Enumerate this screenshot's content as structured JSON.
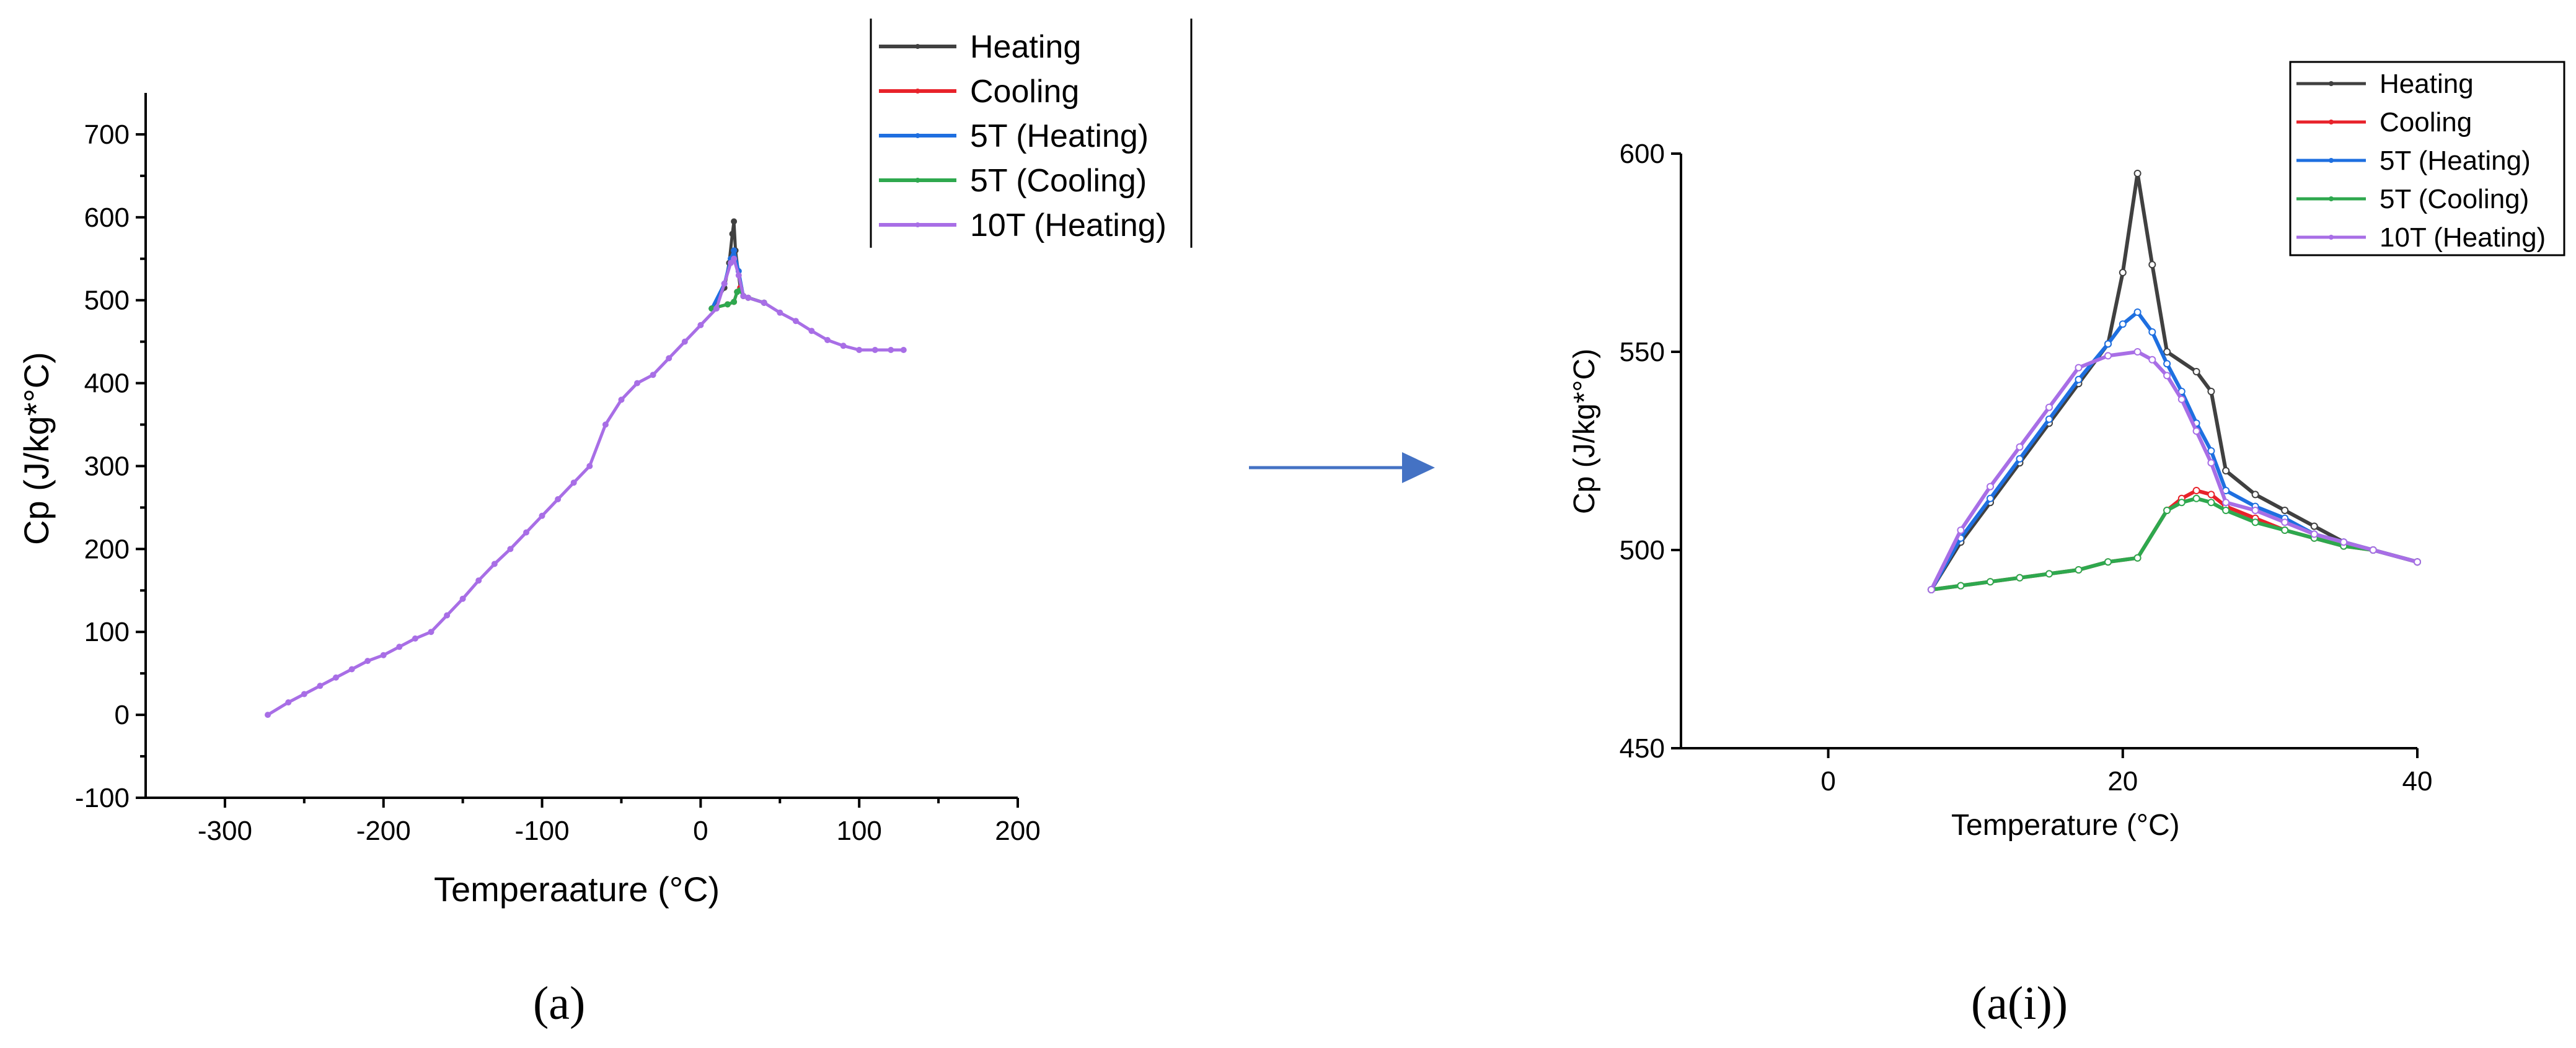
{
  "captions": {
    "left": "(a)",
    "right": "(a(i))"
  },
  "colors": {
    "heating": "#404040",
    "cooling": "#e8222a",
    "heating_5t": "#1e6fe0",
    "cooling_5t": "#2ea84e",
    "heating_10t": "#a86ee6",
    "arrow": "#4472c4"
  },
  "chart_data": [
    {
      "type": "line",
      "title": "",
      "xlabel": "Temperaature (°C)",
      "ylabel": "Cp (J/kg*°C)",
      "xlim": [
        -350,
        200
      ],
      "ylim": [
        -100,
        750
      ],
      "xticks": [
        -300,
        -200,
        -100,
        0,
        100,
        200
      ],
      "yticks": [
        -100,
        0,
        100,
        200,
        300,
        400,
        500,
        600,
        700
      ],
      "xtick_labels": [
        "-300",
        "-200",
        "-100",
        "0",
        "100",
        "200"
      ],
      "ytick_labels": [
        "-100",
        "0",
        "100",
        "200",
        "300",
        "400",
        "500",
        "600",
        "700"
      ],
      "legend_position": "top-right",
      "grid": false,
      "series": [
        {
          "name": "Heating",
          "color": "#404040",
          "points": [
            [
              7,
              490
            ],
            [
              15,
              515
            ],
            [
              18,
              545
            ],
            [
              20,
              580
            ],
            [
              21,
              595
            ],
            [
              22,
              560
            ],
            [
              25,
              515
            ],
            [
              27,
              505
            ],
            [
              30,
              503
            ],
            [
              40,
              497
            ]
          ]
        },
        {
          "name": "Cooling",
          "color": "#e8222a",
          "points": [
            [
              7,
              490
            ],
            [
              17,
              495
            ],
            [
              21,
              498
            ],
            [
              23,
              510
            ],
            [
              25,
              515
            ],
            [
              27,
              505
            ],
            [
              40,
              497
            ]
          ]
        },
        {
          "name": "5T (Heating)",
          "color": "#1e6fe0",
          "points": [
            [
              7,
              490
            ],
            [
              15,
              520
            ],
            [
              19,
              550
            ],
            [
              21,
              560
            ],
            [
              24,
              535
            ],
            [
              27,
              505
            ],
            [
              40,
              497
            ]
          ]
        },
        {
          "name": "5T (Cooling)",
          "color": "#2ea84e",
          "points": [
            [
              7,
              490
            ],
            [
              17,
              495
            ],
            [
              21,
              498
            ],
            [
              23,
              510
            ],
            [
              25,
              512
            ],
            [
              27,
              505
            ],
            [
              40,
              497
            ]
          ]
        },
        {
          "name": "10T (Heating)",
          "color": "#a86ee6",
          "points": [
            [
              -273,
              0
            ],
            [
              -260,
              15
            ],
            [
              -250,
              25
            ],
            [
              -240,
              35
            ],
            [
              -230,
              45
            ],
            [
              -220,
              55
            ],
            [
              -210,
              65
            ],
            [
              -200,
              72
            ],
            [
              -190,
              82
            ],
            [
              -180,
              92
            ],
            [
              -170,
              100
            ],
            [
              -160,
              120
            ],
            [
              -150,
              140
            ],
            [
              -140,
              162
            ],
            [
              -130,
              182
            ],
            [
              -120,
              200
            ],
            [
              -110,
              220
            ],
            [
              -100,
              240
            ],
            [
              -90,
              260
            ],
            [
              -80,
              280
            ],
            [
              -70,
              300
            ],
            [
              -60,
              350
            ],
            [
              -50,
              380
            ],
            [
              -40,
              400
            ],
            [
              -30,
              410
            ],
            [
              -20,
              430
            ],
            [
              -10,
              450
            ],
            [
              0,
              470
            ],
            [
              10,
              490
            ],
            [
              15,
              520
            ],
            [
              19,
              545
            ],
            [
              21,
              550
            ],
            [
              24,
              530
            ],
            [
              27,
              505
            ],
            [
              30,
              503
            ],
            [
              40,
              497
            ],
            [
              50,
              485
            ],
            [
              60,
              475
            ],
            [
              70,
              463
            ],
            [
              80,
              452
            ],
            [
              90,
              445
            ],
            [
              100,
              440
            ],
            [
              110,
              440
            ],
            [
              120,
              440
            ],
            [
              128,
              440
            ]
          ]
        }
      ]
    },
    {
      "type": "line",
      "title": "",
      "xlabel": "Temperature (°C)",
      "ylabel": "Cp (J/kg*°C)",
      "xlim": [
        -10,
        40
      ],
      "ylim": [
        450,
        600
      ],
      "xticks": [
        0,
        20,
        40
      ],
      "yticks": [
        450,
        500,
        550,
        600
      ],
      "xtick_labels": [
        "0",
        "20",
        "40"
      ],
      "ytick_labels": [
        "450",
        "500",
        "550",
        "600"
      ],
      "legend_position": "top-right",
      "grid": false,
      "series": [
        {
          "name": "Heating",
          "color": "#404040",
          "points": [
            [
              7,
              490
            ],
            [
              9,
              502
            ],
            [
              11,
              512
            ],
            [
              13,
              522
            ],
            [
              15,
              532
            ],
            [
              17,
              542
            ],
            [
              19,
              552
            ],
            [
              20,
              570
            ],
            [
              21,
              595
            ],
            [
              22,
              572
            ],
            [
              23,
              550
            ],
            [
              25,
              545
            ],
            [
              26,
              540
            ],
            [
              27,
              520
            ],
            [
              29,
              514
            ],
            [
              31,
              510
            ],
            [
              33,
              506
            ],
            [
              35,
              502
            ],
            [
              37,
              500
            ],
            [
              40,
              497
            ]
          ]
        },
        {
          "name": "Cooling",
          "color": "#e8222a",
          "points": [
            [
              7,
              490
            ],
            [
              9,
              491
            ],
            [
              11,
              492
            ],
            [
              13,
              493
            ],
            [
              15,
              494
            ],
            [
              17,
              495
            ],
            [
              19,
              497
            ],
            [
              21,
              498
            ],
            [
              23,
              510
            ],
            [
              24,
              513
            ],
            [
              25,
              515
            ],
            [
              26,
              514
            ],
            [
              27,
              511
            ],
            [
              29,
              508
            ],
            [
              31,
              505
            ],
            [
              33,
              503
            ],
            [
              35,
              501
            ],
            [
              37,
              500
            ],
            [
              40,
              497
            ]
          ]
        },
        {
          "name": "5T (Heating)",
          "color": "#1e6fe0",
          "points": [
            [
              7,
              490
            ],
            [
              9,
              503
            ],
            [
              11,
              513
            ],
            [
              13,
              523
            ],
            [
              15,
              533
            ],
            [
              17,
              543
            ],
            [
              19,
              552
            ],
            [
              20,
              557
            ],
            [
              21,
              560
            ],
            [
              22,
              555
            ],
            [
              23,
              547
            ],
            [
              24,
              540
            ],
            [
              25,
              532
            ],
            [
              26,
              525
            ],
            [
              27,
              515
            ],
            [
              29,
              511
            ],
            [
              31,
              508
            ],
            [
              33,
              504
            ],
            [
              35,
              502
            ],
            [
              37,
              500
            ],
            [
              40,
              497
            ]
          ]
        },
        {
          "name": "5T (Cooling)",
          "color": "#2ea84e",
          "points": [
            [
              7,
              490
            ],
            [
              9,
              491
            ],
            [
              11,
              492
            ],
            [
              13,
              493
            ],
            [
              15,
              494
            ],
            [
              17,
              495
            ],
            [
              19,
              497
            ],
            [
              21,
              498
            ],
            [
              23,
              510
            ],
            [
              24,
              512
            ],
            [
              25,
              513
            ],
            [
              26,
              512
            ],
            [
              27,
              510
            ],
            [
              29,
              507
            ],
            [
              31,
              505
            ],
            [
              33,
              503
            ],
            [
              35,
              501
            ],
            [
              37,
              500
            ],
            [
              40,
              497
            ]
          ]
        },
        {
          "name": "10T (Heating)",
          "color": "#a86ee6",
          "points": [
            [
              7,
              490
            ],
            [
              9,
              505
            ],
            [
              11,
              516
            ],
            [
              13,
              526
            ],
            [
              15,
              536
            ],
            [
              17,
              546
            ],
            [
              19,
              549
            ],
            [
              21,
              550
            ],
            [
              22,
              548
            ],
            [
              23,
              544
            ],
            [
              24,
              538
            ],
            [
              25,
              530
            ],
            [
              26,
              522
            ],
            [
              27,
              512
            ],
            [
              29,
              510
            ],
            [
              31,
              507
            ],
            [
              33,
              504
            ],
            [
              35,
              502
            ],
            [
              37,
              500
            ],
            [
              40,
              497
            ]
          ]
        }
      ]
    }
  ]
}
